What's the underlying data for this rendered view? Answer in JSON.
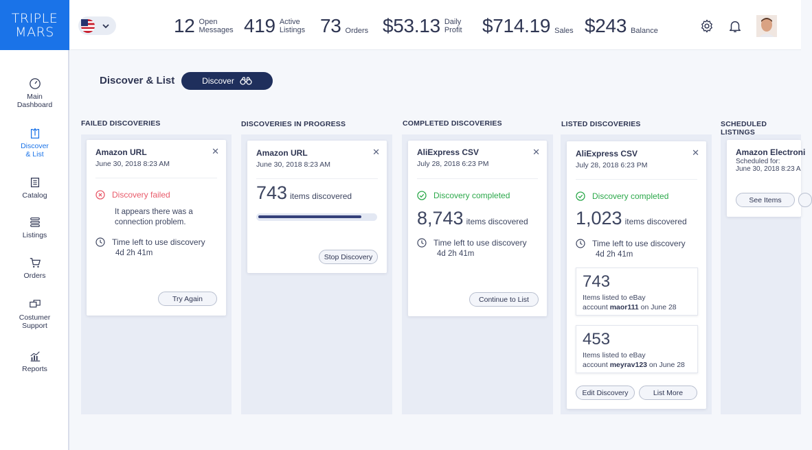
{
  "logo": {
    "line1": "TRIPLE",
    "line2": "MARS"
  },
  "header": {
    "stats": [
      {
        "value": "12",
        "label1": "Open",
        "label2": "Messages"
      },
      {
        "value": "419",
        "label1": "Active",
        "label2": "Listings"
      },
      {
        "value": "73",
        "label1": "Orders",
        "label2": ""
      },
      {
        "value": "$53.13",
        "label1": "Daily",
        "label2": "Profit"
      },
      {
        "value": "$714.19",
        "label1": "Sales",
        "label2": ""
      },
      {
        "value": "$243",
        "label1": "Balance",
        "label2": ""
      }
    ]
  },
  "sidebar": {
    "items": [
      {
        "label": "Main\nDashboard"
      },
      {
        "label": "Discover\n& List"
      },
      {
        "label": "Catalog"
      },
      {
        "label": "Listings"
      },
      {
        "label": "Orders"
      },
      {
        "label": "Costumer\nSupport"
      },
      {
        "label": "Reports"
      }
    ]
  },
  "page": {
    "title": "Discover & List",
    "discover_button": "Discover"
  },
  "columns": {
    "failed": {
      "title": "FAILED DISCOVERIES",
      "card": {
        "source": "Amazon URL",
        "date": "June 30, 2018 8:23 AM",
        "status": "Discovery failed",
        "msg1": "It appears there was a",
        "msg2": "connection problem.",
        "time_label": "Time left to use discovery",
        "time_value": "4d 2h 41m",
        "button": "Try Again"
      }
    },
    "progress": {
      "title": "DISCOVERIES IN PROGRESS",
      "card": {
        "source": "Amazon URL",
        "date": "June 30, 2018 8:23 AM",
        "count": "743",
        "unit": "items discovered",
        "progress_pct": 87,
        "button": "Stop Discovery"
      }
    },
    "completed": {
      "title": "COMPLETED DISCOVERIES",
      "card": {
        "source": "AliExpress CSV",
        "date": "July 28, 2018 6:23 PM",
        "status": "Discovery completed",
        "count": "8,743",
        "unit": "items discovered",
        "time_label": "Time left to use discovery",
        "time_value": "4d 2h 41m",
        "button": "Continue to List"
      }
    },
    "listed": {
      "title": "LISTED DISCOVERIES",
      "card": {
        "source": "AliExpress CSV",
        "date": "July 28, 2018 6:23 PM",
        "status": "Discovery completed",
        "count": "1,023",
        "unit": "items discovered",
        "time_label": "Time left to use discovery",
        "time_value": "4d 2h 41m",
        "listings": [
          {
            "count": "743",
            "line1": "Items listed to eBay",
            "prefix": "account ",
            "account": "maor111",
            "suffix": " on June 28"
          },
          {
            "count": "453",
            "line1": "Items listed to eBay",
            "prefix": "account ",
            "account": "meyrav123",
            "suffix": " on June 28"
          }
        ],
        "edit_button": "Edit Discovery",
        "list_more_button": "List  More"
      }
    },
    "scheduled": {
      "title": "SCHEDULED LISTINGS",
      "card": {
        "source": "Amazon Electroni",
        "line1": "Scheduled for:",
        "line2": "June 30, 2018 8:23 A",
        "button": "See Items"
      }
    }
  }
}
